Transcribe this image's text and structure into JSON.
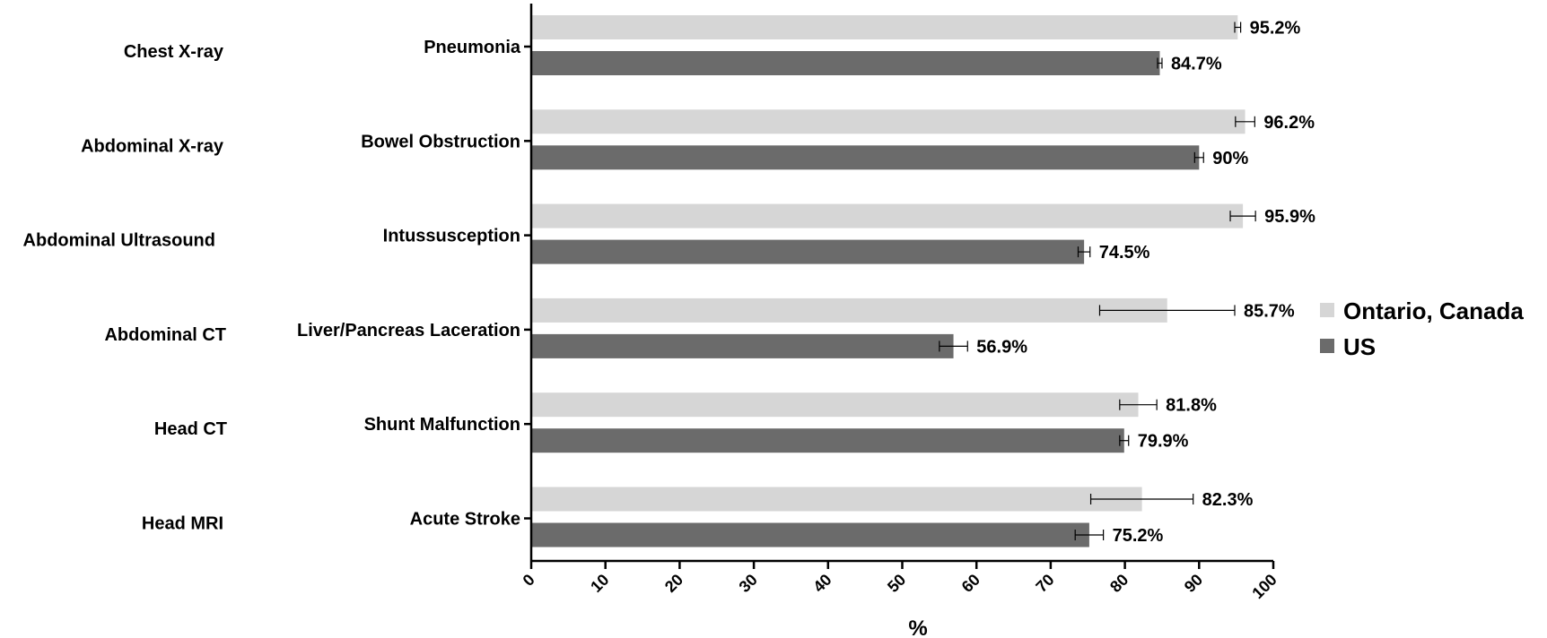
{
  "chart_data": {
    "type": "bar",
    "orientation": "horizontal",
    "modalities": [
      "Chest X-ray",
      "Abdominal X-ray",
      "Abdominal Ultrasound",
      "Abdominal CT",
      "Head CT",
      "Head MRI"
    ],
    "categories": [
      "Pneumonia",
      "Bowel Obstruction",
      "Intussusception",
      "Liver/Pancreas Laceration",
      "Shunt Malfunction",
      "Acute Stroke"
    ],
    "series": [
      {
        "name": "Ontario, Canada",
        "color": "#d6d6d6",
        "values": [
          95.2,
          96.2,
          95.9,
          85.7,
          81.8,
          82.3
        ],
        "labels": [
          "95.2%",
          "96.2%",
          "95.9%",
          "85.7%",
          "81.8%",
          "82.3%"
        ],
        "error_low": [
          94.8,
          94.9,
          94.2,
          76.6,
          79.3,
          75.4
        ],
        "error_high": [
          95.6,
          97.5,
          97.6,
          94.8,
          84.3,
          89.2
        ]
      },
      {
        "name": "US",
        "color": "#6b6b6b",
        "values": [
          84.7,
          90.0,
          74.5,
          56.9,
          79.9,
          75.2
        ],
        "labels": [
          "84.7%",
          "90%",
          "74.5%",
          "56.9%",
          "79.9%",
          "75.2%"
        ],
        "error_low": [
          84.4,
          89.4,
          73.7,
          55.0,
          79.3,
          73.3
        ],
        "error_high": [
          85.0,
          90.6,
          75.3,
          58.8,
          80.5,
          77.1
        ]
      }
    ],
    "xlabel": "%",
    "xlim": [
      0,
      100
    ],
    "xticks": [
      "0",
      "10",
      "20",
      "30",
      "40",
      "50",
      "60",
      "70",
      "80",
      "90",
      "100"
    ],
    "legend_position": "right"
  }
}
